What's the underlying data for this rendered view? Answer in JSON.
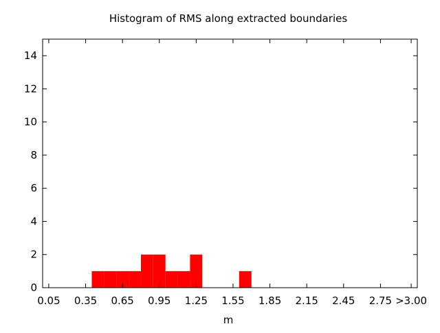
{
  "chart_data": {
    "type": "bar",
    "title": "Histogram of RMS along extracted boundaries",
    "xlabel": "m",
    "ylabel": "",
    "xlim": [
      0.0,
      3.05
    ],
    "ylim": [
      0,
      15
    ],
    "x_ticks": [
      {
        "value": 0.05,
        "label": "0.05"
      },
      {
        "value": 0.35,
        "label": "0.35"
      },
      {
        "value": 0.65,
        "label": "0.65"
      },
      {
        "value": 0.95,
        "label": "0.95"
      },
      {
        "value": 1.25,
        "label": "1.25"
      },
      {
        "value": 1.55,
        "label": "1.55"
      },
      {
        "value": 1.85,
        "label": "1.85"
      },
      {
        "value": 2.15,
        "label": "2.15"
      },
      {
        "value": 2.45,
        "label": "2.45"
      },
      {
        "value": 2.75,
        "label": "2.75"
      },
      {
        "value": 3.0,
        "label": ">3.00"
      }
    ],
    "y_ticks": [
      0,
      2,
      4,
      6,
      8,
      10,
      12,
      14
    ],
    "bin_width": 0.1,
    "bins": [
      {
        "x": 0.45,
        "value": 1
      },
      {
        "x": 0.55,
        "value": 1
      },
      {
        "x": 0.65,
        "value": 1
      },
      {
        "x": 0.75,
        "value": 1
      },
      {
        "x": 0.85,
        "value": 2
      },
      {
        "x": 0.95,
        "value": 2
      },
      {
        "x": 1.05,
        "value": 1
      },
      {
        "x": 1.15,
        "value": 1
      },
      {
        "x": 1.25,
        "value": 2
      },
      {
        "x": 1.65,
        "value": 1
      }
    ],
    "bar_color": "#ff0000",
    "grid": false
  }
}
